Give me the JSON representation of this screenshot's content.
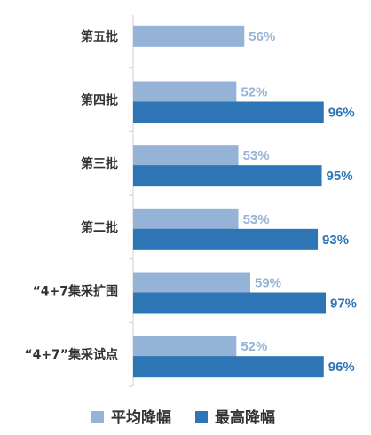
{
  "chart_data": {
    "type": "bar",
    "orientation": "horizontal",
    "categories": [
      "第五批",
      "第四批",
      "第三批",
      "第二批",
      "“4+7集采扩围",
      "“4+7”集采试点"
    ],
    "series": [
      {
        "name": "平均降幅",
        "values": [
          56,
          52,
          53,
          53,
          59,
          52
        ],
        "color": "#95b3d7",
        "label_color": "#95b3d7"
      },
      {
        "name": "最高降幅",
        "values": [
          null,
          96,
          95,
          93,
          97,
          96
        ],
        "color": "#2e75b6",
        "label_color": "#2e75b6"
      }
    ],
    "value_suffix": "%",
    "xlim": [
      0,
      100
    ],
    "legend": "bottom",
    "grid": false
  }
}
